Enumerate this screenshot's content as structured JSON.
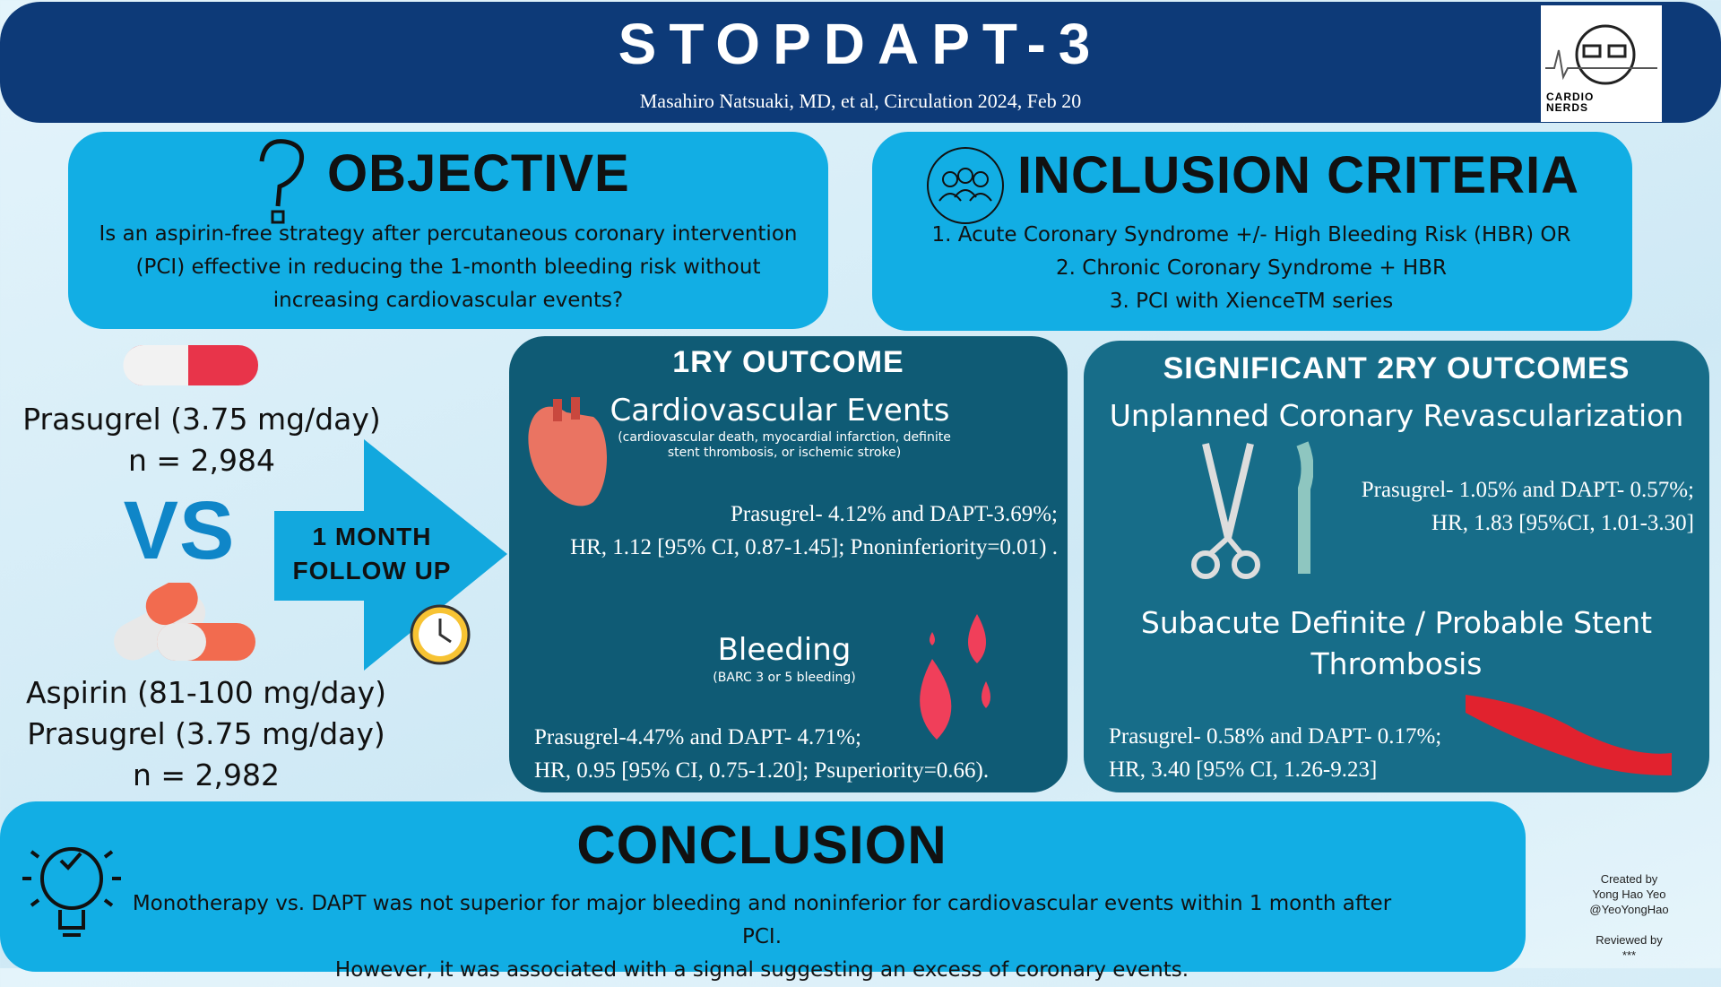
{
  "header": {
    "title": "STOPDAPT-3",
    "citation": "Masahiro Natsuaki, MD, et al, Circulation 2024, Feb 20",
    "logo": [
      "CARDIO",
      "NERDS"
    ]
  },
  "objective": {
    "heading": "OBJECTIVE",
    "text": "Is an aspirin-free strategy after percutaneous coronary intervention (PCI) effective in reducing the 1-month bleeding risk without increasing cardiovascular events?"
  },
  "inclusion": {
    "heading": "INCLUSION CRITERIA",
    "items": [
      "1. Acute Coronary Syndrome +/- High Bleeding Risk (HBR) OR",
      "2. Chronic Coronary Syndrome + HBR",
      "3. PCI with XienceTM series"
    ]
  },
  "arm1": {
    "lines": [
      "Prasugrel (3.75 mg/day)"
    ],
    "n": "n = 2,984"
  },
  "vs": "VS",
  "arm2": {
    "lines": [
      "Aspirin (81-100 mg/day)",
      "Prasugrel (3.75 mg/day)"
    ],
    "n": "n = 2,982"
  },
  "follow_up": [
    "1 MONTH",
    "FOLLOW UP"
  ],
  "primary": {
    "heading": "1RY OUTCOME",
    "cv": {
      "title": "Cardiovascular Events",
      "note": "(cardiovascular death, myocardial infarction, definite stent thrombosis, or ischemic stroke)",
      "result": [
        "Prasugrel- 4.12% and DAPT-3.69%;",
        "HR, 1.12 [95% CI, 0.87-1.45]; Pnoninferiority=0.01) ."
      ]
    },
    "bleeding": {
      "title": "Bleeding",
      "note": "(BARC 3 or 5 bleeding)",
      "result": [
        "Prasugrel-4.47% and DAPT- 4.71%;",
        "HR, 0.95 [95% CI, 0.75-1.20]; Psuperiority=0.66)."
      ]
    }
  },
  "secondary": {
    "heading": "SIGNIFICANT 2RY OUTCOMES",
    "items": [
      {
        "title": "Unplanned Coronary Revascularization",
        "result": [
          "Prasugrel- 1.05% and DAPT- 0.57%;",
          "HR, 1.83 [95%CI, 1.01-3.30]"
        ]
      },
      {
        "title": "Subacute Definite / Probable Stent Thrombosis",
        "result": [
          "Prasugrel- 0.58% and DAPT- 0.17%;",
          "HR, 3.40 [95% CI, 1.26-9.23]"
        ]
      }
    ]
  },
  "conclusion": {
    "heading": "CONCLUSION",
    "lines": [
      "Monotherapy vs. DAPT was not superior for major bleeding and noninferior for cardiovascular events within 1 month after PCI.",
      "However, it was associated with a signal suggesting an excess of coronary events."
    ]
  },
  "credits": [
    "Created by",
    "Yong Hao Yeo",
    "@YeoYongHao",
    "Reviewed by",
    "***"
  ]
}
